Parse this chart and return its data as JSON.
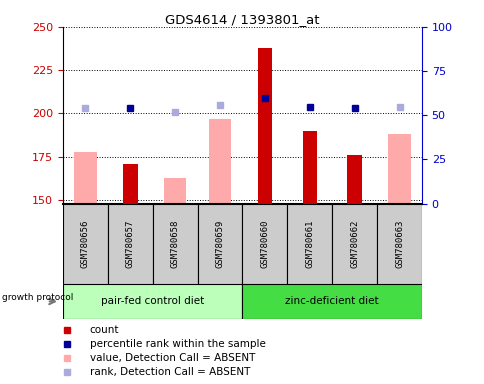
{
  "title": "GDS4614 / 1393801_at",
  "samples": [
    "GSM780656",
    "GSM780657",
    "GSM780658",
    "GSM780659",
    "GSM780660",
    "GSM780661",
    "GSM780662",
    "GSM780663"
  ],
  "count_values": [
    null,
    171,
    null,
    null,
    238,
    190,
    176,
    null
  ],
  "absent_value_values": [
    178,
    null,
    163,
    197,
    null,
    null,
    null,
    188
  ],
  "percentile_dark": [
    null,
    203,
    null,
    null,
    209,
    204,
    203,
    null
  ],
  "percentile_absent": [
    203,
    null,
    201,
    205,
    null,
    null,
    null,
    204
  ],
  "ylim_left": [
    148,
    250
  ],
  "ylim_right": [
    0,
    100
  ],
  "yticks_left": [
    150,
    175,
    200,
    225,
    250
  ],
  "yticks_right": [
    0,
    25,
    50,
    75,
    100
  ],
  "group1_label": "pair-fed control diet",
  "group2_label": "zinc-deficient diet",
  "group1_color": "#bbffbb",
  "group2_color": "#44dd44",
  "sample_bg_color": "#cccccc",
  "count_color": "#cc0000",
  "absent_value_color": "#ffaaaa",
  "percentile_dark_color": "#000099",
  "percentile_absent_color": "#aaaadd",
  "left_tick_color": "#cc0000",
  "right_tick_color": "#0000cc",
  "legend_items": [
    {
      "color": "#cc0000",
      "label": "count"
    },
    {
      "color": "#000099",
      "label": "percentile rank within the sample"
    },
    {
      "color": "#ffaaaa",
      "label": "value, Detection Call = ABSENT"
    },
    {
      "color": "#aaaadd",
      "label": "rank, Detection Call = ABSENT"
    }
  ]
}
